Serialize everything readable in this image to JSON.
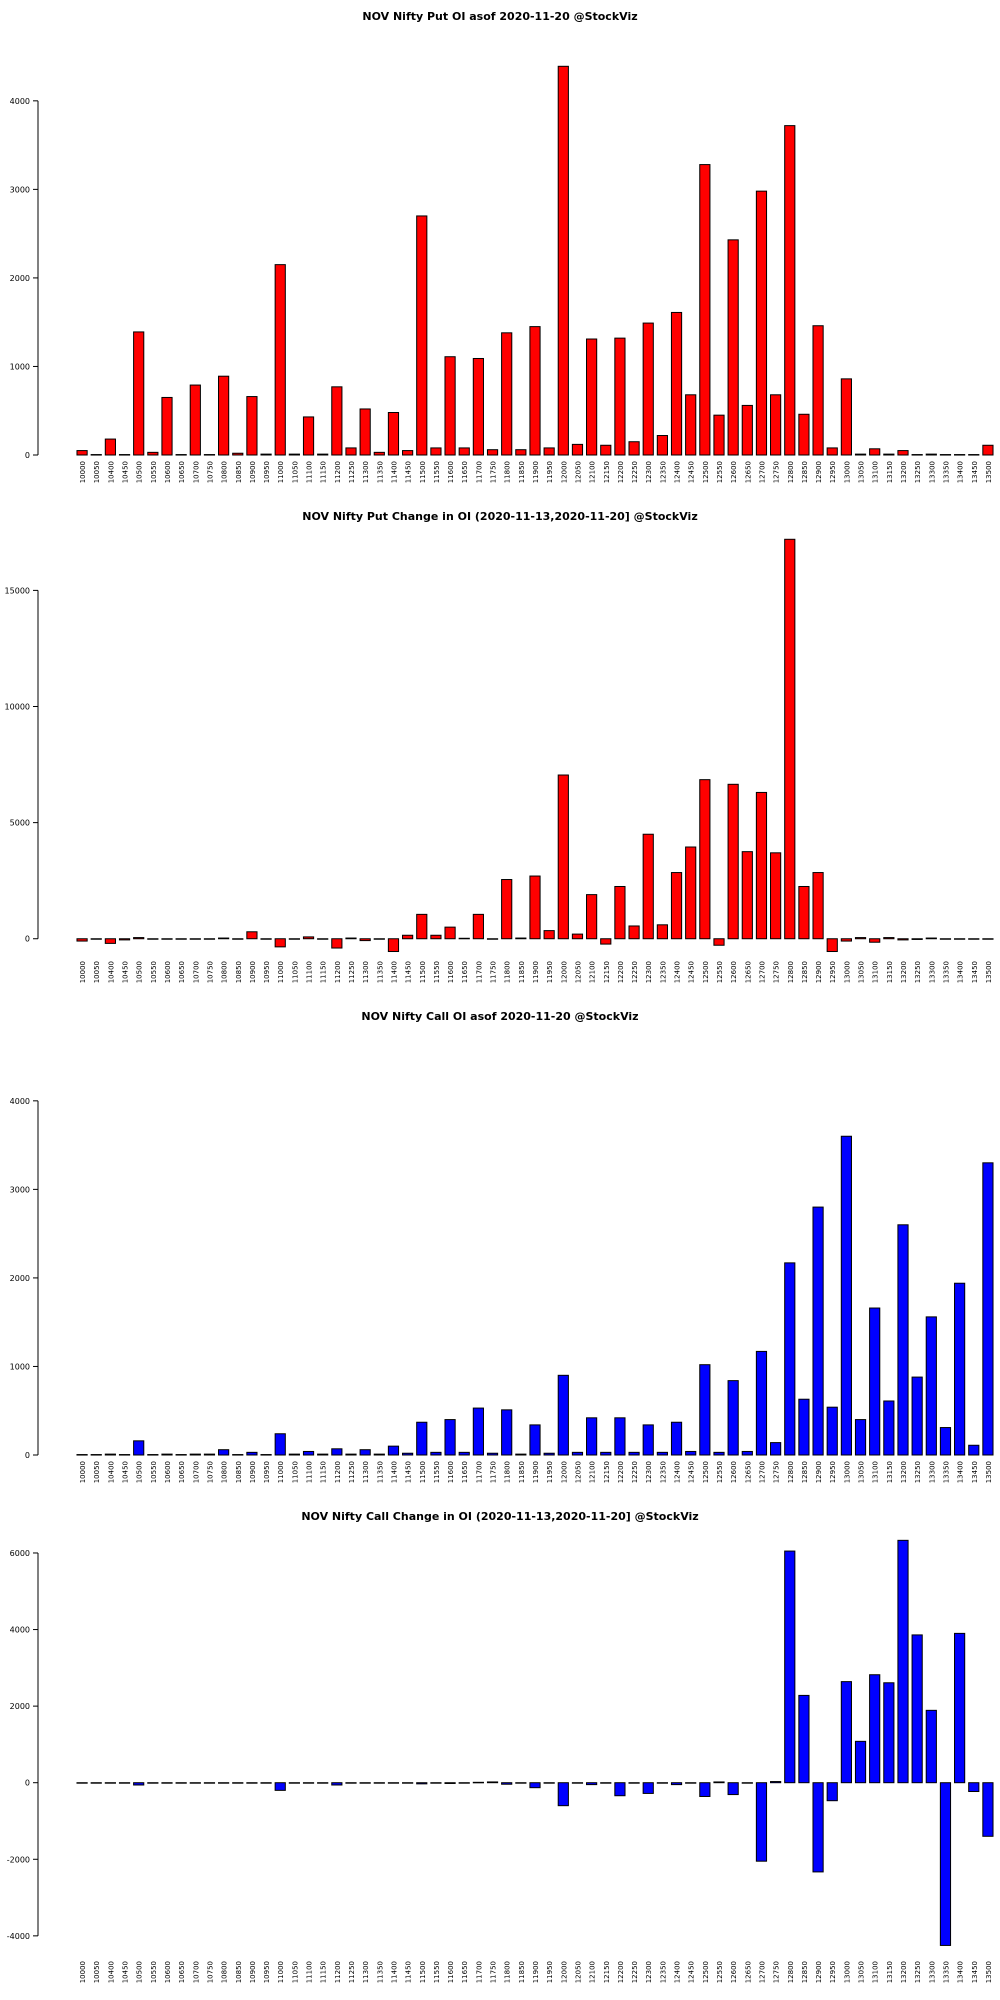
{
  "chart_data": [
    {
      "type": "bar",
      "title": "NOV Nifty Put OI asof 2020-11-20 @StockViz",
      "color": "#ff0000",
      "categories": [
        "10000",
        "10050",
        "10400",
        "10450",
        "10500",
        "10550",
        "10600",
        "10650",
        "10700",
        "10750",
        "10800",
        "10850",
        "10900",
        "10950",
        "11000",
        "11050",
        "11100",
        "11150",
        "11200",
        "11250",
        "11300",
        "11350",
        "11400",
        "11450",
        "11500",
        "11550",
        "11600",
        "11650",
        "11700",
        "11750",
        "11800",
        "11850",
        "11900",
        "11950",
        "12000",
        "12050",
        "12100",
        "12150",
        "12200",
        "12250",
        "12300",
        "12350",
        "12400",
        "12450",
        "12500",
        "12550",
        "12600",
        "12650",
        "12700",
        "12750",
        "12800",
        "12850",
        "12900",
        "12950",
        "13000",
        "13050",
        "13100",
        "13150",
        "13200",
        "13250",
        "13300",
        "13350",
        "13400",
        "13450",
        "13500"
      ],
      "values": [
        50,
        5,
        180,
        5,
        1390,
        30,
        650,
        5,
        790,
        5,
        890,
        20,
        660,
        10,
        2150,
        10,
        430,
        10,
        770,
        80,
        520,
        30,
        480,
        50,
        2700,
        80,
        1110,
        80,
        1090,
        60,
        1380,
        60,
        1450,
        80,
        4390,
        120,
        1310,
        110,
        1320,
        150,
        1490,
        220,
        1610,
        680,
        3280,
        450,
        2430,
        560,
        2980,
        680,
        3720,
        460,
        1460,
        80,
        860,
        10,
        70,
        10,
        50,
        5,
        10,
        5,
        5,
        5,
        110
      ],
      "ylim": [
        0,
        4800
      ],
      "yticks": [
        0,
        1000,
        2000,
        3000,
        4000
      ]
    },
    {
      "type": "bar",
      "title": "NOV Nifty Put Change in OI (2020-11-13,2020-11-20] @StockViz",
      "color": "#ff0000",
      "categories": [
        "10000",
        "10050",
        "10400",
        "10450",
        "10500",
        "10550",
        "10600",
        "10650",
        "10700",
        "10750",
        "10800",
        "10850",
        "10900",
        "10950",
        "11000",
        "11050",
        "11100",
        "11150",
        "11200",
        "11250",
        "11300",
        "11350",
        "11400",
        "11450",
        "11500",
        "11550",
        "11600",
        "11650",
        "11700",
        "11750",
        "11800",
        "11850",
        "11900",
        "11950",
        "12000",
        "12050",
        "12100",
        "12150",
        "12200",
        "12250",
        "12300",
        "12350",
        "12400",
        "12450",
        "12500",
        "12550",
        "12600",
        "12650",
        "12700",
        "12750",
        "12800",
        "12850",
        "12900",
        "12950",
        "13000",
        "13050",
        "13100",
        "13150",
        "13200",
        "13250",
        "13300",
        "13350",
        "13400",
        "13450",
        "13500"
      ],
      "values": [
        -100,
        0,
        -200,
        -50,
        50,
        -20,
        0,
        0,
        0,
        0,
        30,
        0,
        300,
        0,
        -350,
        0,
        80,
        0,
        -400,
        30,
        -80,
        0,
        -550,
        150,
        1050,
        150,
        500,
        20,
        1050,
        0,
        2550,
        30,
        2700,
        350,
        7050,
        200,
        1900,
        -230,
        2250,
        550,
        4500,
        600,
        2850,
        3950,
        6850,
        -280,
        6650,
        3750,
        6300,
        3700,
        17200,
        2250,
        2850,
        -550,
        -100,
        50,
        -150,
        50,
        -50,
        -30,
        30,
        -20,
        0,
        0,
        0
      ],
      "ylim": [
        -700,
        17600
      ],
      "yticks": [
        0,
        5000,
        10000,
        15000
      ]
    },
    {
      "type": "bar",
      "title": "NOV Nifty Call OI asof 2020-11-20 @StockViz",
      "color": "#0000ff",
      "categories": [
        "10000",
        "10050",
        "10400",
        "10450",
        "10500",
        "10550",
        "10600",
        "10650",
        "10700",
        "10750",
        "10800",
        "10850",
        "10900",
        "10950",
        "11000",
        "11050",
        "11100",
        "11150",
        "11200",
        "11250",
        "11300",
        "11350",
        "11400",
        "11450",
        "11500",
        "11550",
        "11600",
        "11650",
        "11700",
        "11750",
        "11800",
        "11850",
        "11900",
        "11950",
        "12000",
        "12050",
        "12100",
        "12150",
        "12200",
        "12250",
        "12300",
        "12350",
        "12400",
        "12450",
        "12500",
        "12550",
        "12600",
        "12650",
        "12700",
        "12750",
        "12800",
        "12850",
        "12900",
        "12950",
        "13000",
        "13050",
        "13100",
        "13150",
        "13200",
        "13250",
        "13300",
        "13350",
        "13400",
        "13450",
        "13500"
      ],
      "values": [
        5,
        5,
        10,
        5,
        160,
        5,
        10,
        5,
        10,
        10,
        60,
        5,
        30,
        5,
        240,
        10,
        40,
        10,
        70,
        10,
        60,
        10,
        100,
        20,
        370,
        30,
        400,
        30,
        530,
        20,
        510,
        10,
        340,
        20,
        900,
        30,
        420,
        30,
        420,
        30,
        340,
        30,
        370,
        40,
        1020,
        30,
        840,
        40,
        1170,
        140,
        2170,
        630,
        2800,
        540,
        3600,
        400,
        1660,
        610,
        2600,
        880,
        1560,
        310,
        1940,
        110,
        3300
      ],
      "ylim": [
        0,
        4800
      ],
      "yticks": [
        0,
        1000,
        2000,
        3000,
        4000
      ]
    },
    {
      "type": "bar",
      "title": "NOV Nifty Call Change in OI (2020-11-13,2020-11-20] @StockViz",
      "color": "#0000ff",
      "categories": [
        "10000",
        "10050",
        "10400",
        "10450",
        "10500",
        "10550",
        "10600",
        "10650",
        "10700",
        "10750",
        "10800",
        "10850",
        "10900",
        "10950",
        "11000",
        "11050",
        "11100",
        "11150",
        "11200",
        "11250",
        "11300",
        "11350",
        "11400",
        "11450",
        "11500",
        "11550",
        "11600",
        "11650",
        "11700",
        "11750",
        "11800",
        "11850",
        "11900",
        "11950",
        "12000",
        "12050",
        "12100",
        "12150",
        "12200",
        "12250",
        "12300",
        "12350",
        "12400",
        "12450",
        "12500",
        "12550",
        "12600",
        "12650",
        "12700",
        "12750",
        "12800",
        "12850",
        "12900",
        "12950",
        "13000",
        "13050",
        "13100",
        "13150",
        "13200",
        "13250",
        "13300",
        "13350",
        "13400",
        "13450",
        "13500"
      ],
      "values": [
        0,
        0,
        0,
        0,
        -60,
        0,
        0,
        0,
        0,
        0,
        0,
        0,
        0,
        0,
        -200,
        0,
        0,
        0,
        -60,
        0,
        0,
        0,
        0,
        0,
        -30,
        0,
        -20,
        0,
        10,
        20,
        -40,
        0,
        -130,
        0,
        -600,
        0,
        -50,
        0,
        -340,
        0,
        -280,
        0,
        -50,
        0,
        -360,
        20,
        -310,
        0,
        -2050,
        30,
        6050,
        2280,
        -2330,
        -470,
        2640,
        1080,
        2820,
        2610,
        6330,
        3860,
        1890,
        -4250,
        3900,
        -230,
        -1400
      ],
      "ylim": [
        -4500,
        6600
      ],
      "yticks": [
        -4000,
        -2000,
        0,
        2000,
        4000,
        6000
      ]
    }
  ]
}
